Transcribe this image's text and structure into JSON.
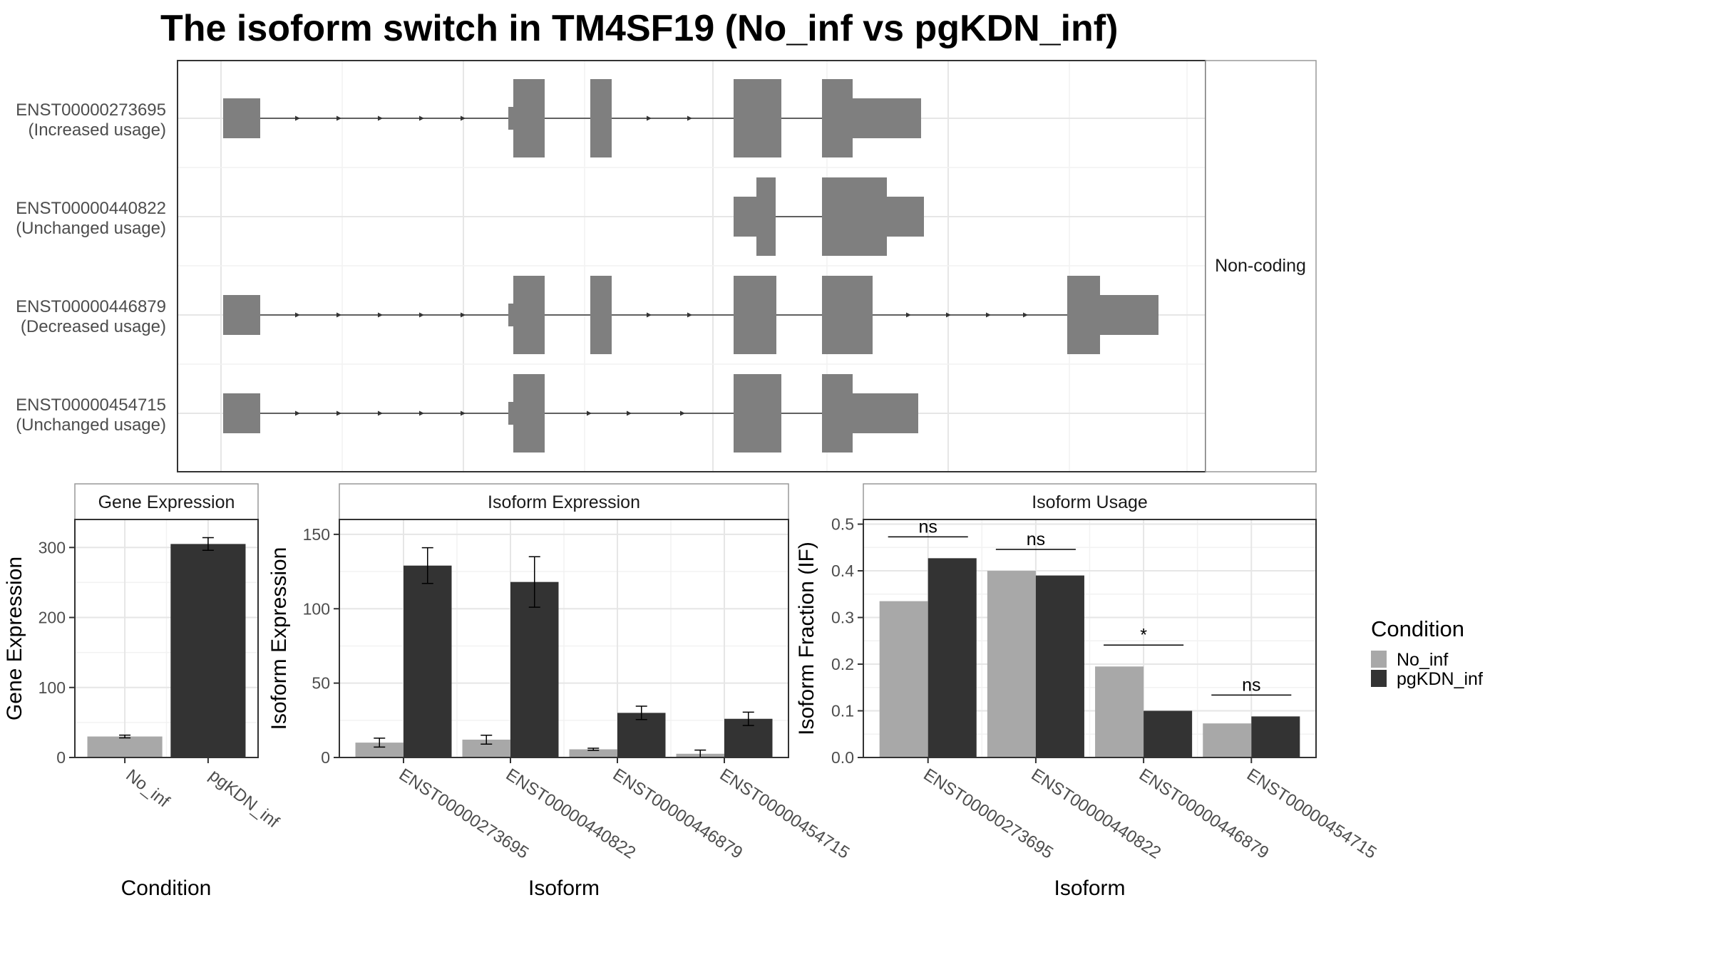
{
  "title": "The isoform switch in TM4SF19 (No_inf vs pgKDN_inf)",
  "structure_panel": {
    "strip_label": "Non-coding",
    "isoforms": [
      {
        "id": "ENST00000273695",
        "status": "(Increased usage)"
      },
      {
        "id": "ENST00000440822",
        "status": "(Unchanged usage)"
      },
      {
        "id": "ENST00000446879",
        "status": "(Decreased usage)"
      },
      {
        "id": "ENST00000454715",
        "status": "(Unchanged usage)"
      }
    ]
  },
  "chart_data": [
    {
      "type": "bar",
      "title": "Gene Expression",
      "xlabel": "Condition",
      "ylabel": "Gene Expression",
      "categories": [
        "No_inf",
        "pgKDN_inf"
      ],
      "values": [
        30,
        305
      ],
      "errors": [
        2,
        9
      ],
      "ylim": [
        0,
        340
      ],
      "yticks": [
        0,
        100,
        200,
        300
      ],
      "colors": [
        "#a8a8a8",
        "#333333"
      ],
      "grid": true
    },
    {
      "type": "bar",
      "title": "Isoform Expression",
      "xlabel": "Isoform",
      "ylabel": "Isoform Expression",
      "categories": [
        "ENST00000273695",
        "ENST00000440822",
        "ENST00000446879",
        "ENST00000454715"
      ],
      "series": [
        {
          "name": "No_inf",
          "values": [
            10,
            12,
            5.5,
            2.5
          ],
          "errors": [
            3,
            3,
            0.7,
            2.5
          ]
        },
        {
          "name": "pgKDN_inf",
          "values": [
            129,
            118,
            30,
            26
          ],
          "errors": [
            12,
            17,
            4.5,
            4.5
          ]
        }
      ],
      "ylim": [
        0,
        160
      ],
      "yticks": [
        0,
        50,
        100,
        150
      ],
      "grid": true
    },
    {
      "type": "bar",
      "title": "Isoform Usage",
      "xlabel": "Isoform",
      "ylabel": "Isoform Fraction (IF)",
      "categories": [
        "ENST00000273695",
        "ENST00000440822",
        "ENST00000446879",
        "ENST00000454715"
      ],
      "series": [
        {
          "name": "No_inf",
          "values": [
            0.335,
            0.4,
            0.195,
            0.073
          ]
        },
        {
          "name": "pgKDN_inf",
          "values": [
            0.427,
            0.39,
            0.1,
            0.088
          ]
        }
      ],
      "significance": [
        "ns",
        "ns",
        "*",
        "ns"
      ],
      "ylim": [
        0,
        0.51
      ],
      "yticks": [
        0.0,
        0.1,
        0.2,
        0.3,
        0.4,
        0.5
      ],
      "ytick_labels": [
        "0.0",
        "0.1",
        "0.2",
        "0.3",
        "0.4",
        "0.5"
      ],
      "grid": true
    }
  ],
  "legend": {
    "title": "Condition",
    "items": [
      {
        "label": "No_inf",
        "color": "#a8a8a8"
      },
      {
        "label": "pgKDN_inf",
        "color": "#333333"
      }
    ]
  }
}
